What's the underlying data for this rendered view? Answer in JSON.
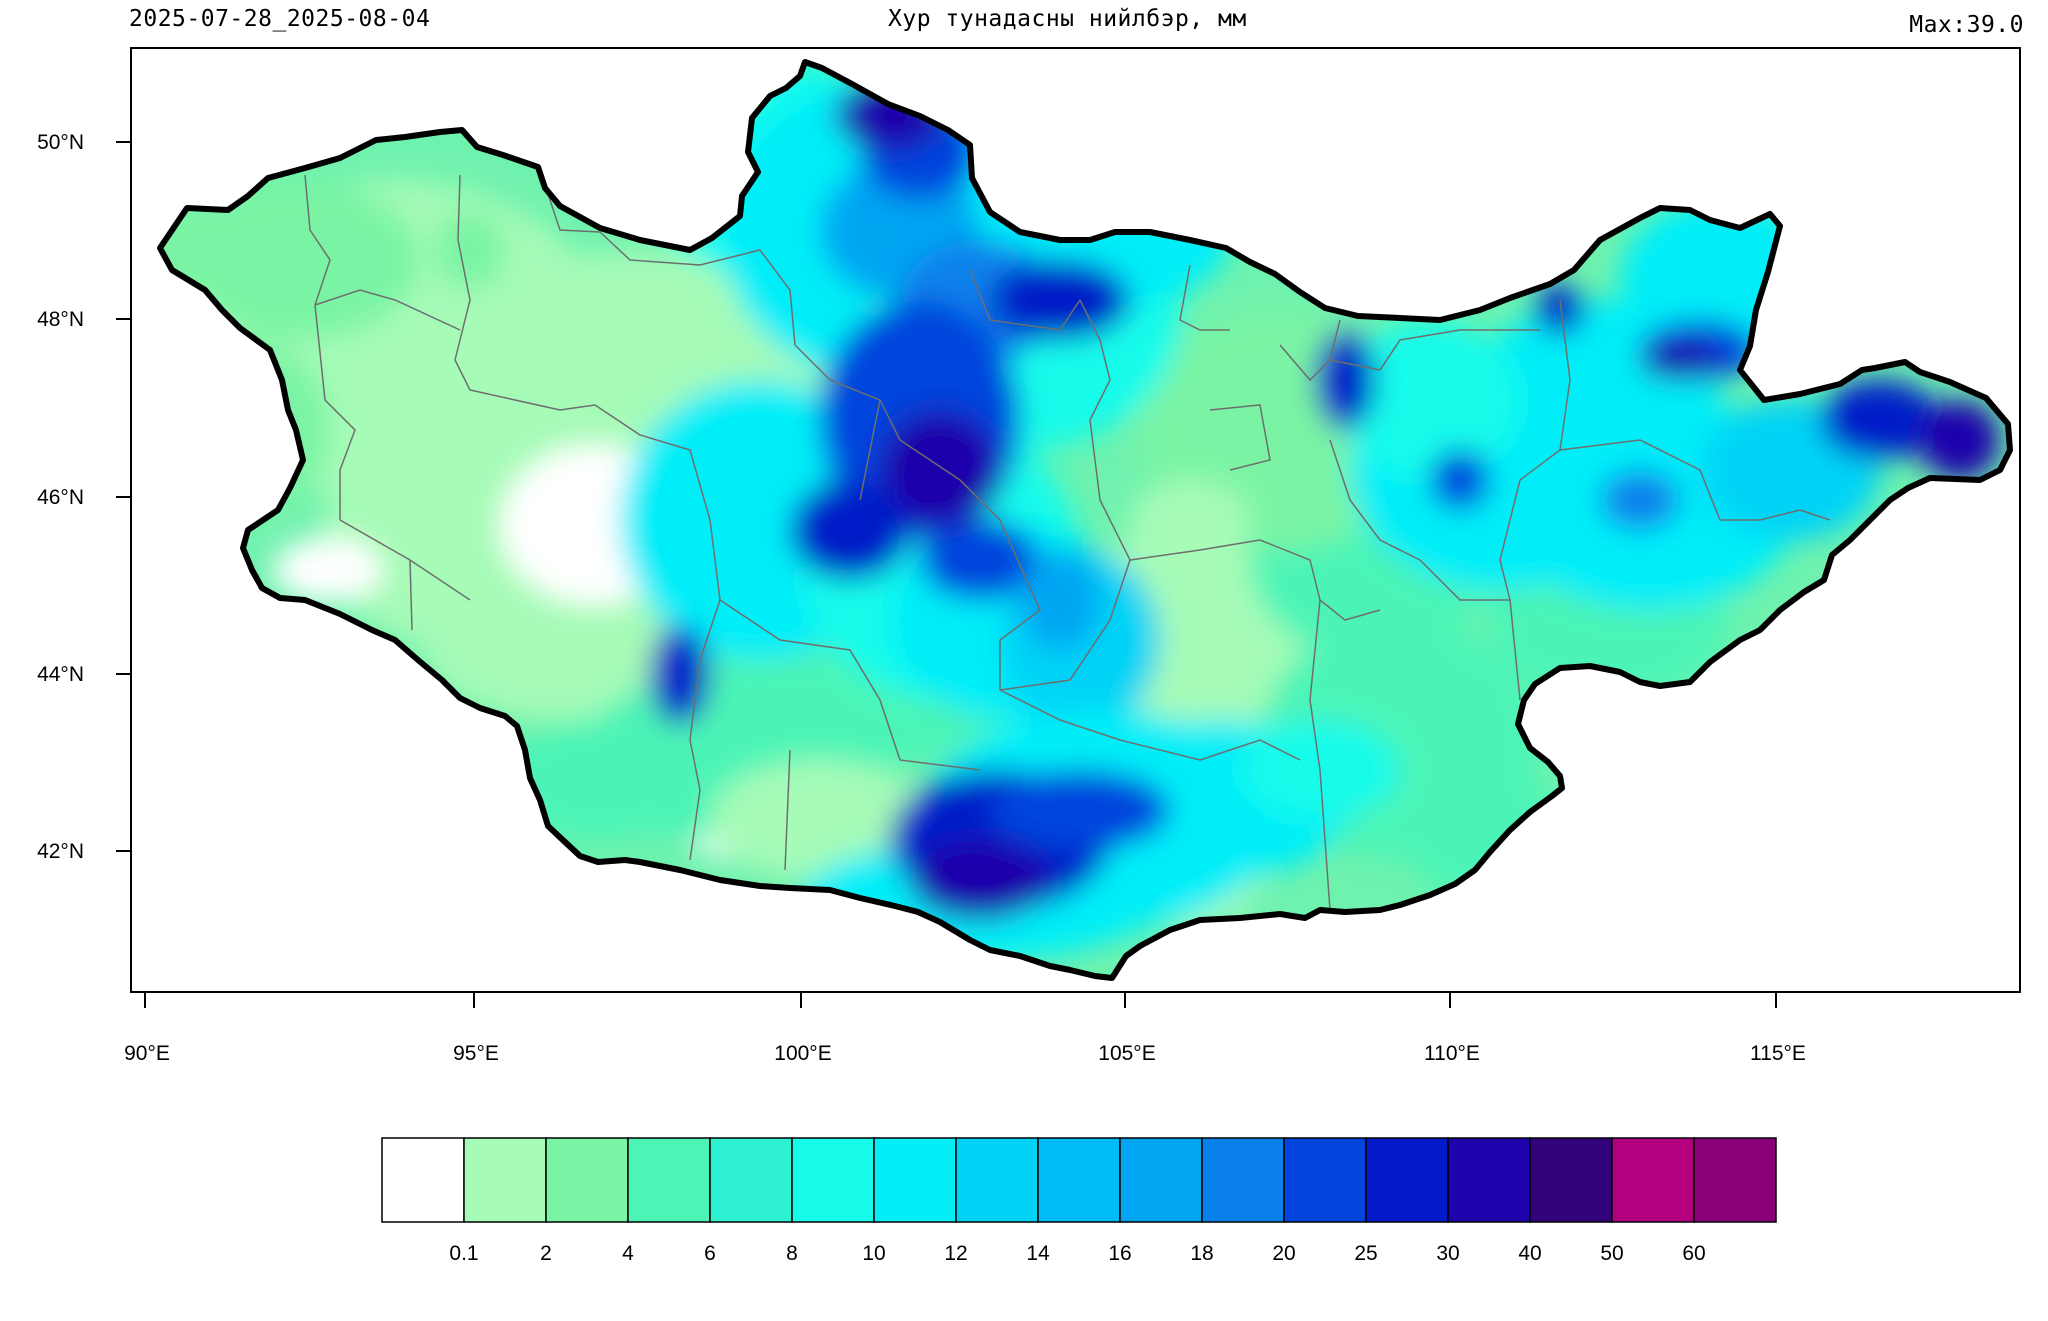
{
  "header": {
    "date_range": "2025-07-28_2025-08-04",
    "title": "Хур тунадасны нийлбэр, мм",
    "max_label": "Max:39.0"
  },
  "map": {
    "region": "Mongolia",
    "lat_labels": [
      "50°N",
      "48°N",
      "46°N",
      "44°N",
      "42°N"
    ],
    "lon_labels": [
      "90°E",
      "95°E",
      "100°E",
      "105°E",
      "110°E",
      "115°E"
    ],
    "border_color": "#000000",
    "province_line_color": "#6e6e6e"
  },
  "legend": {
    "labels": [
      "0.1",
      "2",
      "4",
      "6",
      "8",
      "10",
      "12",
      "14",
      "16",
      "18",
      "20",
      "25",
      "30",
      "40",
      "50",
      "60"
    ],
    "colors": [
      "#ffffff",
      "#a6fbb7",
      "#7af4a4",
      "#4cf4b6",
      "#2ef1d1",
      "#16fbea",
      "#04eef8",
      "#00d3f6",
      "#00bcf6",
      "#01a5f2",
      "#0a80ea",
      "#0345dd",
      "#041ac8",
      "#1e02ab",
      "#33037c",
      "#b3007e",
      "#8a0079"
    ]
  }
}
